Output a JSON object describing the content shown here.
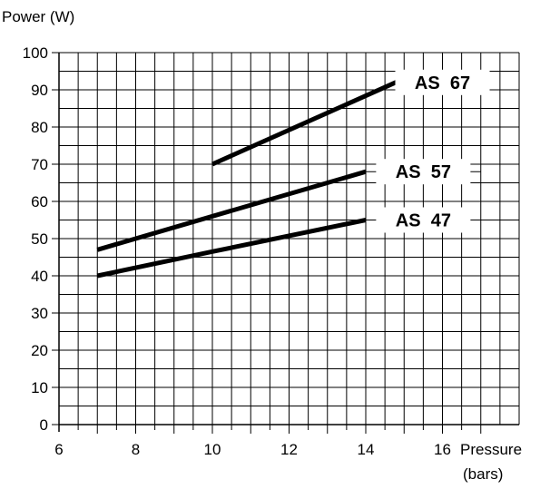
{
  "chart_data": {
    "type": "line",
    "ylabel": "Power (W)",
    "xlabel": "Pressure (bars)",
    "xlabel_lines": [
      "Pressure",
      "(bars)"
    ],
    "xlim": [
      6,
      18
    ],
    "ylim": [
      0,
      100
    ],
    "x_ticks": [
      6,
      8,
      10,
      12,
      14,
      16
    ],
    "y_ticks": [
      0,
      10,
      20,
      30,
      40,
      50,
      60,
      70,
      80,
      90,
      100
    ],
    "x_minor_step": 0.5,
    "y_minor_step": 5,
    "grid": true,
    "series": [
      {
        "name": "AS 67",
        "x": [
          10,
          15
        ],
        "y": [
          70,
          93
        ],
        "label_x": [
          15,
          17
        ],
        "label_y": 92
      },
      {
        "name": "AS 57",
        "x": [
          7,
          14
        ],
        "y": [
          47,
          68
        ],
        "label_x": [
          14,
          17
        ],
        "label_y": 68
      },
      {
        "name": "AS 47",
        "x": [
          7,
          10,
          14
        ],
        "y": [
          40,
          46.5,
          55
        ],
        "label_x": [
          14,
          17
        ],
        "label_y": 55
      }
    ]
  }
}
